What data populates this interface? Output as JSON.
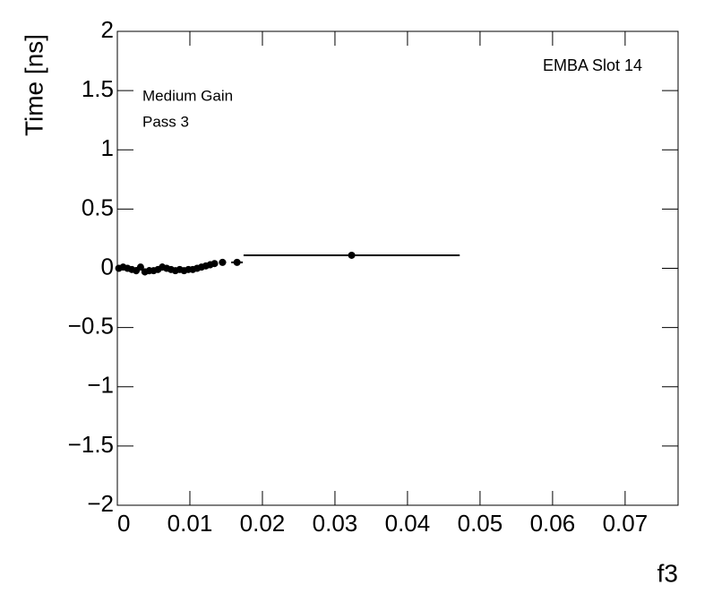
{
  "chart_data": {
    "type": "scatter",
    "x_label": "f3",
    "y_label": "Time [ns]",
    "annotations": [
      "EMBA Slot 14",
      "Medium Gain",
      "Pass 3"
    ],
    "x": [
      0.0002,
      0.0008,
      0.0014,
      0.002,
      0.0026,
      0.0032,
      0.0038,
      0.0044,
      0.005,
      0.0056,
      0.0062,
      0.0068,
      0.0074,
      0.008,
      0.0086,
      0.0092,
      0.0098,
      0.0104,
      0.011,
      0.0116,
      0.0122,
      0.0128,
      0.0134,
      0.0145,
      0.0165,
      0.0323
    ],
    "xerr": [
      0.0003,
      0.0003,
      0.0003,
      0.0003,
      0.0003,
      0.0003,
      0.0003,
      0.0003,
      0.0003,
      0.0003,
      0.0003,
      0.0003,
      0.0003,
      0.0003,
      0.0003,
      0.0003,
      0.0003,
      0.0003,
      0.0003,
      0.0003,
      0.0003,
      0.0003,
      0.0003,
      0.0005,
      0.0008,
      0.0149
    ],
    "values": [
      0.0,
      0.01,
      0.0,
      -0.01,
      -0.02,
      0.01,
      -0.03,
      -0.02,
      -0.02,
      -0.01,
      0.01,
      0.0,
      -0.01,
      -0.02,
      -0.01,
      -0.02,
      -0.01,
      -0.01,
      0.0,
      0.01,
      0.02,
      0.03,
      0.04,
      0.05,
      0.05,
      0.11
    ],
    "yerr": [
      0.02,
      0.02,
      0.02,
      0.02,
      0.03,
      0.02,
      0.03,
      0.03,
      0.02,
      0.02,
      0.03,
      0.02,
      0.02,
      0.02,
      0.02,
      0.02,
      0.02,
      0.02,
      0.02,
      0.02,
      0.02,
      0.03,
      0.02,
      0.02,
      0.01,
      0.01
    ],
    "color": "#000000",
    "xlim": [
      0,
      0.0773
    ],
    "ylim": [
      -2,
      2
    ],
    "xticks": [
      0,
      0.01,
      0.02,
      0.03,
      0.04,
      0.05,
      0.06,
      0.07
    ],
    "yticks": [
      {
        "value": -2,
        "label": "−2"
      },
      {
        "value": -1.5,
        "label": "−1.5"
      },
      {
        "value": -1,
        "label": "−1"
      },
      {
        "value": -0.5,
        "label": "−0.5"
      },
      0,
      0.5,
      1,
      1.5,
      2
    ]
  }
}
